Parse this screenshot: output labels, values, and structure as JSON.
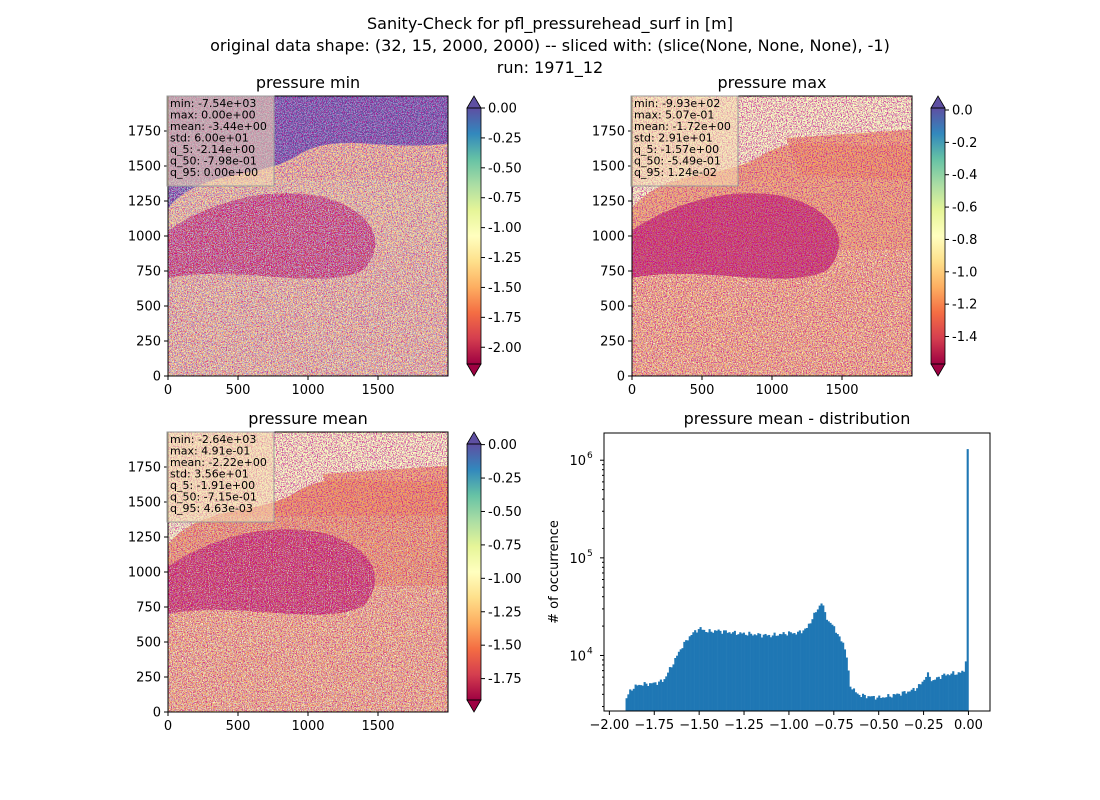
{
  "figure": {
    "title_lines": [
      "Sanity-Check for pfl_pressurehead_surf in [m]",
      "original data shape: (32, 15, 2000, 2000) -- sliced with: (slice(None, None, None), -1)",
      "run: 1971_12"
    ]
  },
  "colors": {
    "spectral": [
      "#9e0142",
      "#d53e4f",
      "#f46d43",
      "#fdae61",
      "#fee08b",
      "#ffffbf",
      "#e6f598",
      "#abdda4",
      "#66c2a5",
      "#3288bd",
      "#5e4fa2"
    ],
    "over": "#5e4fa2",
    "under": "#9e0142",
    "hist_fill": "#1f77b4"
  },
  "chart_data": [
    {
      "type": "heatmap",
      "title": "pressure min",
      "x_ticks": [
        "0",
        "500",
        "1000",
        "1500"
      ],
      "y_ticks": [
        "0",
        "250",
        "500",
        "750",
        "1000",
        "1250",
        "1500",
        "1750"
      ],
      "x_range": [
        0,
        2000
      ],
      "y_range": [
        0,
        2000
      ],
      "colorbar": {
        "ticks": [
          "0.00",
          "-0.25",
          "-0.50",
          "-0.75",
          "-1.00",
          "-1.25",
          "-1.50",
          "-1.75",
          "-2.00"
        ],
        "range": [
          -2.14,
          0.0
        ],
        "extend": "both"
      },
      "stats": [
        "min: -7.54e+03",
        "max: 0.00e+00",
        "mean: -3.44e+00",
        "std: 6.00e+01",
        "q_5: -2.14e+00",
        "q_50: -7.98e-01",
        "q_95: 0.00e+00"
      ]
    },
    {
      "type": "heatmap",
      "title": "pressure max",
      "x_ticks": [
        "0",
        "500",
        "1000",
        "1500"
      ],
      "y_ticks": [
        "0",
        "250",
        "500",
        "750",
        "1000",
        "1250",
        "1500",
        "1750"
      ],
      "x_range": [
        0,
        2000
      ],
      "y_range": [
        0,
        2000
      ],
      "colorbar": {
        "ticks": [
          "0.0",
          "-0.2",
          "-0.4",
          "-0.6",
          "-0.8",
          "-1.0",
          "-1.2",
          "-1.4"
        ],
        "range": [
          -1.57,
          0.0124
        ],
        "extend": "both"
      },
      "stats": [
        "min: -9.93e+02",
        "max: 5.07e-01",
        "mean: -1.72e+00",
        "std: 2.91e+01",
        "q_5: -1.57e+00",
        "q_50: -5.49e-01",
        "q_95: 1.24e-02"
      ]
    },
    {
      "type": "heatmap",
      "title": "pressure mean",
      "x_ticks": [
        "0",
        "500",
        "1000",
        "1500"
      ],
      "y_ticks": [
        "0",
        "250",
        "500",
        "750",
        "1000",
        "1250",
        "1500",
        "1750"
      ],
      "x_range": [
        0,
        2000
      ],
      "y_range": [
        0,
        2000
      ],
      "colorbar": {
        "ticks": [
          "0.00",
          "-0.25",
          "-0.50",
          "-0.75",
          "-1.00",
          "-1.25",
          "-1.50",
          "-1.75"
        ],
        "range": [
          -1.91,
          0.00463
        ],
        "extend": "both"
      },
      "stats": [
        "min: -2.64e+03",
        "max: 4.91e-01",
        "mean: -2.22e+00",
        "std: 3.56e+01",
        "q_5: -1.91e+00",
        "q_50: -7.15e-01",
        "q_95: 4.63e-03"
      ]
    },
    {
      "type": "bar",
      "title": "pressure mean - distribution",
      "ylabel": "# of occurrence",
      "yscale": "log",
      "x_range": [
        -2.03,
        0.12
      ],
      "y_range": [
        2700,
        1900000
      ],
      "x_ticks": [
        "−2.00",
        "−1.75",
        "−1.50",
        "−1.25",
        "−1.00",
        "−0.75",
        "−0.50",
        "−0.25",
        "0.00"
      ],
      "y_ticks": [
        {
          "value": 10000,
          "mantissa": "10",
          "exp": "4"
        },
        {
          "value": 100000,
          "mantissa": "10",
          "exp": "5"
        },
        {
          "value": 1000000,
          "mantissa": "10",
          "exp": "6"
        }
      ],
      "x_profile": [
        -1.91,
        -1.88,
        -1.84,
        -1.75,
        -1.7,
        -1.65,
        -1.6,
        -1.55,
        -1.5,
        -1.45,
        -1.4,
        -1.3,
        -1.2,
        -1.1,
        -1.0,
        -0.95,
        -0.9,
        -0.87,
        -0.84,
        -0.82,
        -0.8,
        -0.78,
        -0.75,
        -0.72,
        -0.7,
        -0.68,
        -0.66,
        -0.63,
        -0.6,
        -0.55,
        -0.5,
        -0.45,
        -0.4,
        -0.35,
        -0.3,
        -0.26,
        -0.23,
        -0.2,
        -0.15,
        -0.1,
        -0.05,
        -0.02,
        -0.01,
        0.0
      ],
      "y_profile": [
        3500,
        4500,
        5000,
        5200,
        5500,
        8000,
        12000,
        16000,
        19000,
        17500,
        18000,
        17000,
        16500,
        16000,
        17000,
        17000,
        19000,
        24000,
        30000,
        35000,
        28000,
        22000,
        20000,
        15000,
        14000,
        10000,
        5000,
        4200,
        3900,
        3800,
        3700,
        3800,
        4000,
        4200,
        4500,
        5200,
        6500,
        5500,
        6200,
        6500,
        6600,
        7000,
        12000,
        1300000
      ]
    }
  ]
}
